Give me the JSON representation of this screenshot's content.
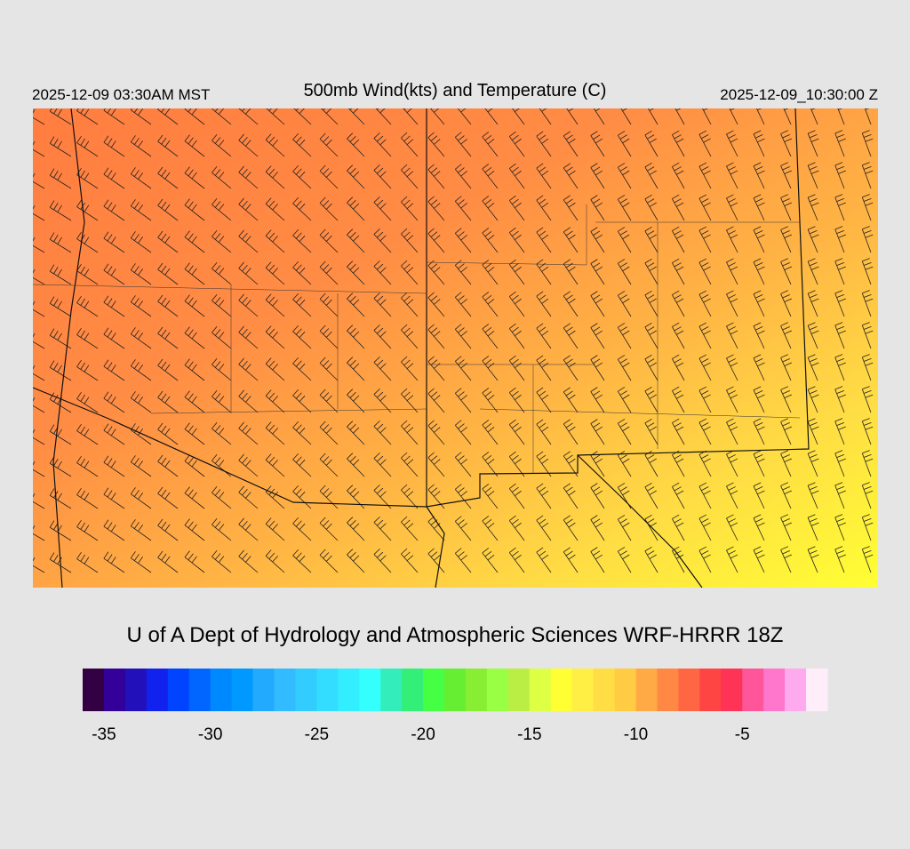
{
  "header": {
    "title": "500mb Wind(kts) and Temperature (C)",
    "valid_local": "2025-12-09 03:30AM MST",
    "valid_utc": "2025-12-09_10:30:00 Z"
  },
  "credit": "U of A Dept of Hydrology and Atmospheric Sciences WRF-HRRR 18Z",
  "colorbar": {
    "range": [
      -36,
      -1
    ],
    "ticks": [
      -35,
      -30,
      -25,
      -20,
      -15,
      -10,
      -5
    ],
    "colors": [
      "#330044",
      "#330099",
      "#2211bb",
      "#1122ee",
      "#0044ff",
      "#0066ff",
      "#0088ff",
      "#0099ff",
      "#22aaff",
      "#33bbff",
      "#33ccff",
      "#33ddff",
      "#33eeff",
      "#33ffff",
      "#33eebb",
      "#33ee77",
      "#44ff44",
      "#66ee33",
      "#88ee33",
      "#99ff44",
      "#bbee44",
      "#ddff44",
      "#ffff33",
      "#ffee44",
      "#ffdd44",
      "#ffcc44",
      "#ffaa44",
      "#ff8844",
      "#ff6644",
      "#ff4444",
      "#ff3355",
      "#ff5599",
      "#ff77cc",
      "#ffaaee",
      "#ffeefa"
    ]
  }
}
